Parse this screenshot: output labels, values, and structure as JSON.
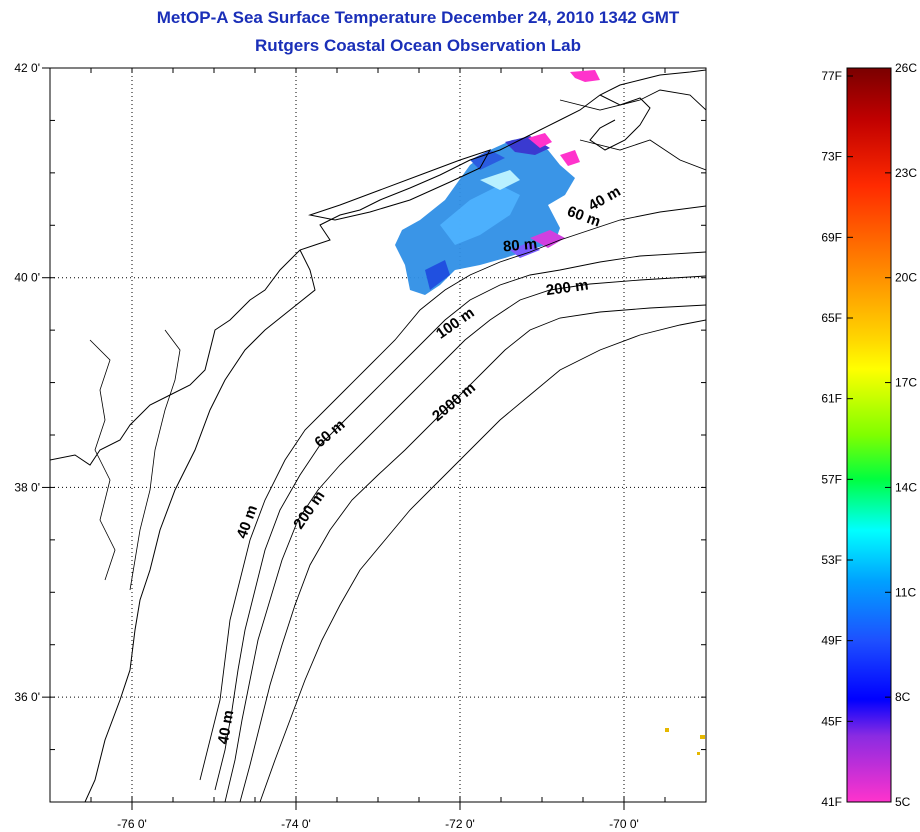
{
  "title_line1": "MetOP-A Sea Surface Temperature December 24, 2010 1342 GMT",
  "title_line2": "Rutgers Coastal Ocean Observation Lab",
  "map": {
    "lat_ticks": [
      {
        "label": "42 0'",
        "lat": 42
      },
      {
        "label": "40 0'",
        "lat": 40
      },
      {
        "label": "38 0'",
        "lat": 38
      },
      {
        "label": "36 0'",
        "lat": 36
      }
    ],
    "lon_ticks": [
      {
        "label": "-76 0'",
        "lon": -76
      },
      {
        "label": "-74 0'",
        "lon": -74
      },
      {
        "label": "-72 0'",
        "lon": -72
      },
      {
        "label": "-70 0'",
        "lon": -70
      }
    ],
    "extent": {
      "lon_min": -77,
      "lon_max": -69,
      "lat_min": 35,
      "lat_max": 42
    }
  },
  "isobath_labels": [
    {
      "text": "40 m"
    },
    {
      "text": "60 m"
    },
    {
      "text": "80 m"
    },
    {
      "text": "200 m"
    },
    {
      "text": "100 m"
    },
    {
      "text": "2000 m"
    },
    {
      "text": "60 m"
    },
    {
      "text": "200 m"
    },
    {
      "text": "40 m"
    },
    {
      "text": "40 m"
    }
  ],
  "colorbar": {
    "celsius_labels": [
      "26C",
      "23C",
      "20C",
      "17C",
      "14C",
      "11C",
      "8C",
      "5C"
    ],
    "fahrenheit_labels": [
      "77F",
      "73F",
      "69F",
      "65F",
      "61F",
      "57F",
      "53F",
      "49F",
      "45F",
      "41F"
    ],
    "colors": [
      "#8b0000",
      "#ff0000",
      "#ff8c00",
      "#ffff00",
      "#00ff00",
      "#00ffff",
      "#1e90ff",
      "#0000ff",
      "#8a2be2",
      "#ff33cc"
    ]
  }
}
